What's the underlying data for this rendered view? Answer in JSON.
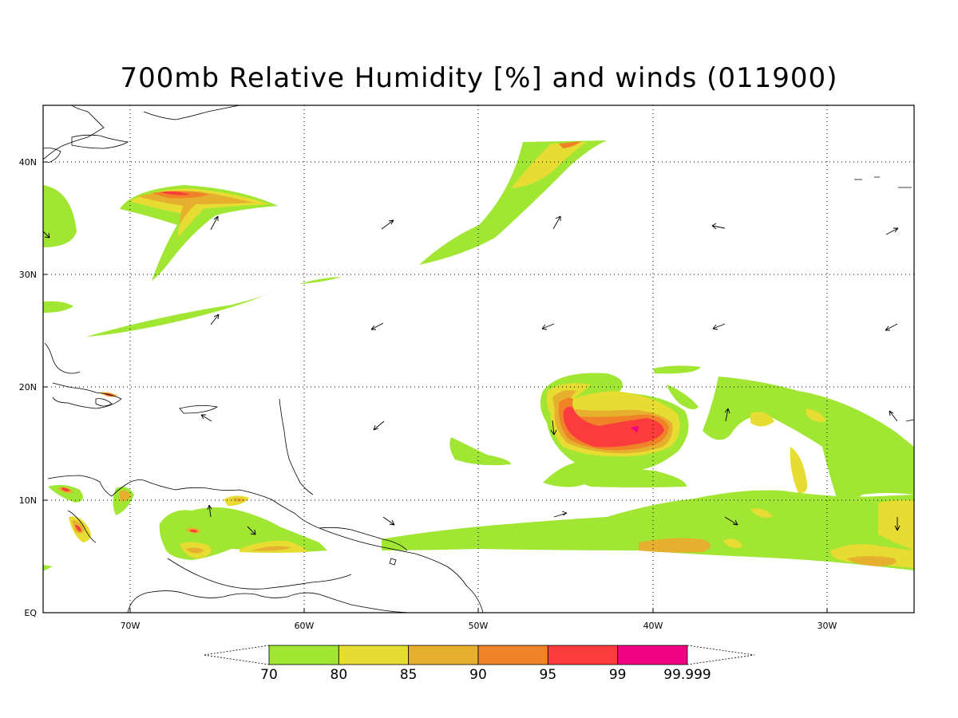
{
  "title": "700mb Relative Humidity [%] and winds (011900)",
  "map": {
    "lon_range": [
      -75,
      -25
    ],
    "lat_range": [
      0,
      45
    ],
    "lat_ticks": [
      {
        "value": 40,
        "label": "40N"
      },
      {
        "value": 30,
        "label": "30N"
      },
      {
        "value": 20,
        "label": "20N"
      },
      {
        "value": 10,
        "label": "10N"
      },
      {
        "value": 0,
        "label": "EQ"
      }
    ],
    "lon_ticks": [
      {
        "value": -70,
        "label": "70W"
      },
      {
        "value": -60,
        "label": "60W"
      },
      {
        "value": -50,
        "label": "50W"
      },
      {
        "value": -40,
        "label": "40W"
      },
      {
        "value": -30,
        "label": "30W"
      }
    ],
    "grid": "dotted"
  },
  "colorbar": {
    "levels": [
      "70",
      "80",
      "85",
      "90",
      "95",
      "99",
      "99.999"
    ],
    "colors": [
      "#a0e632",
      "#e6dc32",
      "#e6af2d",
      "#f08228",
      "#fa3c3c",
      "#f00082"
    ]
  }
}
